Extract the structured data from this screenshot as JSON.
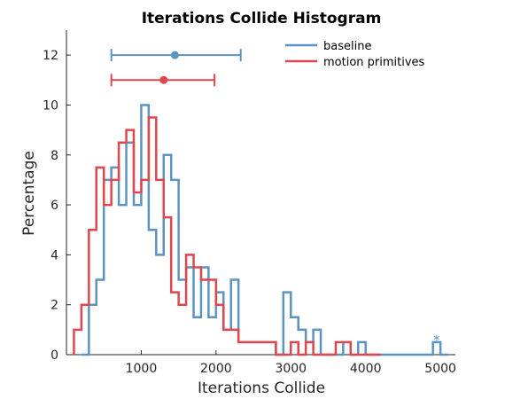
{
  "chart_data": {
    "type": "histogram",
    "title": "Iterations Collide Histogram",
    "xlabel": "Iterations Collide",
    "ylabel": "Percentage",
    "xlim": [
      0,
      5200
    ],
    "ylim": [
      0,
      13
    ],
    "xticks": [
      1000,
      2000,
      3000,
      4000,
      5000
    ],
    "yticks": [
      0,
      2,
      4,
      6,
      8,
      10,
      12
    ],
    "bin_width": 100,
    "grid": false,
    "legend_position": "top-right",
    "series": [
      {
        "name": "baseline",
        "color": "#5b93c1",
        "bin_starts": [
          200,
          300,
          400,
          500,
          600,
          700,
          800,
          900,
          1000,
          1100,
          1200,
          1300,
          1400,
          1500,
          1600,
          1700,
          1800,
          1900,
          2000,
          2100,
          2200,
          2300,
          2400,
          2500,
          2600,
          2700,
          2800,
          2900,
          3000,
          3100,
          3200,
          3300,
          3400,
          3500,
          3600,
          3700,
          3800,
          3900,
          4000,
          4100,
          4200,
          4300,
          4400,
          4500,
          4600,
          4700,
          4800,
          4900,
          5000
        ],
        "values": [
          0,
          2,
          3,
          7,
          7.5,
          6,
          8.5,
          6,
          10,
          5,
          4,
          8,
          7,
          3,
          3.5,
          1.5,
          3.5,
          1.5,
          2.5,
          1,
          3,
          0.5,
          0.5,
          0.5,
          0.5,
          0.5,
          0,
          2.5,
          1.5,
          1,
          0.5,
          1,
          0,
          0,
          0,
          0.5,
          0,
          0.5,
          0,
          0,
          0,
          0,
          0,
          0,
          0,
          0,
          0,
          0.5,
          0
        ],
        "mean": 1450,
        "interval": [
          600,
          2330
        ],
        "marker_y": 12
      },
      {
        "name": "motion primitives",
        "color": "#e0464e",
        "bin_starts": [
          100,
          200,
          300,
          400,
          500,
          600,
          700,
          800,
          900,
          1000,
          1100,
          1200,
          1300,
          1400,
          1500,
          1600,
          1700,
          1800,
          1900,
          2000,
          2100,
          2200,
          2300,
          2400,
          2500,
          2600,
          2700,
          2800,
          2900,
          3000,
          3100,
          3200,
          3300,
          3400,
          3500,
          3600,
          3700,
          3800,
          3900,
          4000,
          4100
        ],
        "values": [
          1,
          2,
          5,
          7.5,
          6,
          7,
          8.5,
          9,
          6.5,
          7,
          9.5,
          7,
          5.5,
          2.5,
          2,
          4,
          3.5,
          3,
          3,
          2,
          1,
          1,
          0.5,
          0.5,
          0.5,
          0.5,
          0.5,
          0,
          0,
          0.5,
          0,
          0.5,
          0,
          0,
          0,
          0.5,
          0.5,
          0,
          0,
          0,
          0
        ],
        "mean": 1300,
        "interval": [
          600,
          1980
        ],
        "marker_y": 11
      }
    ],
    "annotation": {
      "text": "*",
      "x": 4950,
      "y": 0.7,
      "color": "#5b93c1"
    }
  }
}
